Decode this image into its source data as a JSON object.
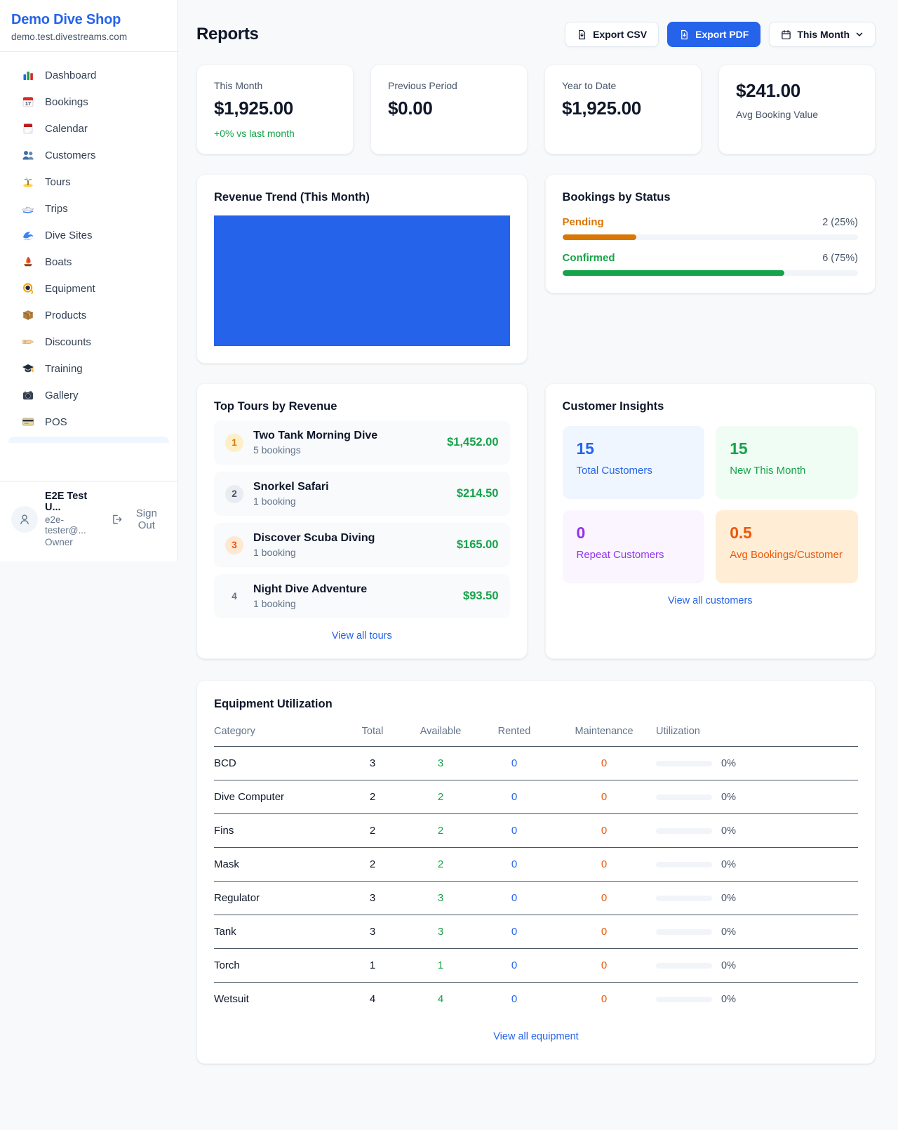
{
  "colors": {
    "accent_blue": "#2563eb",
    "green": "#16a34a",
    "orange": "#d97706",
    "deep_orange": "#ea580c",
    "purple": "#9333ea"
  },
  "sidebar": {
    "brand": {
      "name": "Demo Dive Shop",
      "domain": "demo.test.divestreams.com"
    },
    "items": [
      {
        "label": "Dashboard",
        "icon": "dashboard-icon"
      },
      {
        "label": "Bookings",
        "icon": "bookings-calendar-icon"
      },
      {
        "label": "Calendar",
        "icon": "calendar-icon"
      },
      {
        "label": "Customers",
        "icon": "customers-icon"
      },
      {
        "label": "Tours",
        "icon": "island-icon"
      },
      {
        "label": "Trips",
        "icon": "speedboat-icon"
      },
      {
        "label": "Dive Sites",
        "icon": "wave-icon"
      },
      {
        "label": "Boats",
        "icon": "sailboat-icon"
      },
      {
        "label": "Equipment",
        "icon": "dive-mask-icon"
      },
      {
        "label": "Products",
        "icon": "package-icon"
      },
      {
        "label": "Discounts",
        "icon": "tag-icon"
      },
      {
        "label": "Training",
        "icon": "graduation-cap-icon"
      },
      {
        "label": "Gallery",
        "icon": "camera-icon"
      },
      {
        "label": "POS",
        "icon": "credit-card-icon"
      }
    ],
    "user": {
      "name": "E2E Test U...",
      "email": "e2e-tester@...",
      "role": "Owner",
      "sign_out_label": "Sign Out"
    }
  },
  "header": {
    "title": "Reports",
    "export_csv_label": "Export CSV",
    "export_pdf_label": "Export PDF",
    "period_label": "This Month"
  },
  "stats": [
    {
      "label": "This Month",
      "value": "$1,925.00",
      "delta": "+0% vs last month"
    },
    {
      "label": "Previous Period",
      "value": "$0.00"
    },
    {
      "label": "Year to Date",
      "value": "$1,925.00"
    },
    {
      "label": "Avg Booking Value",
      "value": "$241.00"
    }
  ],
  "revenue_trend": {
    "title": "Revenue Trend (This Month)",
    "bar_color": "#2563eb",
    "chart_note": "single solid bar filling the full plot area, no axes or labels"
  },
  "bookings_by_status": {
    "title": "Bookings by Status",
    "rows": [
      {
        "label": "Pending",
        "value": "2 (25%)",
        "pct": 25,
        "color": "#d97706",
        "label_color": "#d97706"
      },
      {
        "label": "Confirmed",
        "value": "6 (75%)",
        "pct": 75,
        "color": "#16a34a",
        "label_color": "#16a34a"
      }
    ]
  },
  "top_tours": {
    "title": "Top Tours by Revenue",
    "rows": [
      {
        "rank": "1",
        "name": "Two Tank Morning Dive",
        "bookings": "5 bookings",
        "revenue": "$1,452.00"
      },
      {
        "rank": "2",
        "name": "Snorkel Safari",
        "bookings": "1 booking",
        "revenue": "$214.50"
      },
      {
        "rank": "3",
        "name": "Discover Scuba Diving",
        "bookings": "1 booking",
        "revenue": "$165.00"
      },
      {
        "rank": "4",
        "name": "Night Dive Adventure",
        "bookings": "1 booking",
        "revenue": "$93.50"
      }
    ],
    "link": "View all tours"
  },
  "customer_insights": {
    "title": "Customer Insights",
    "tiles": [
      {
        "value": "15",
        "label": "Total Customers"
      },
      {
        "value": "15",
        "label": "New This Month"
      },
      {
        "value": "0",
        "label": "Repeat Customers"
      },
      {
        "value": "0.5",
        "label": "Avg Bookings/Customer"
      }
    ],
    "link": "View all customers"
  },
  "equipment": {
    "title": "Equipment Utilization",
    "columns": [
      "Category",
      "Total",
      "Available",
      "Rented",
      "Maintenance",
      "Utilization"
    ],
    "rows": [
      {
        "category": "BCD",
        "total": "3",
        "available": "3",
        "rented": "0",
        "maintenance": "0",
        "utilization": "0%",
        "pct": 0
      },
      {
        "category": "Dive Computer",
        "total": "2",
        "available": "2",
        "rented": "0",
        "maintenance": "0",
        "utilization": "0%",
        "pct": 0
      },
      {
        "category": "Fins",
        "total": "2",
        "available": "2",
        "rented": "0",
        "maintenance": "0",
        "utilization": "0%",
        "pct": 0
      },
      {
        "category": "Mask",
        "total": "2",
        "available": "2",
        "rented": "0",
        "maintenance": "0",
        "utilization": "0%",
        "pct": 0
      },
      {
        "category": "Regulator",
        "total": "3",
        "available": "3",
        "rented": "0",
        "maintenance": "0",
        "utilization": "0%",
        "pct": 0
      },
      {
        "category": "Tank",
        "total": "3",
        "available": "3",
        "rented": "0",
        "maintenance": "0",
        "utilization": "0%",
        "pct": 0
      },
      {
        "category": "Torch",
        "total": "1",
        "available": "1",
        "rented": "0",
        "maintenance": "0",
        "utilization": "0%",
        "pct": 0
      },
      {
        "category": "Wetsuit",
        "total": "4",
        "available": "4",
        "rented": "0",
        "maintenance": "0",
        "utilization": "0%",
        "pct": 0
      }
    ],
    "link": "View all equipment"
  }
}
